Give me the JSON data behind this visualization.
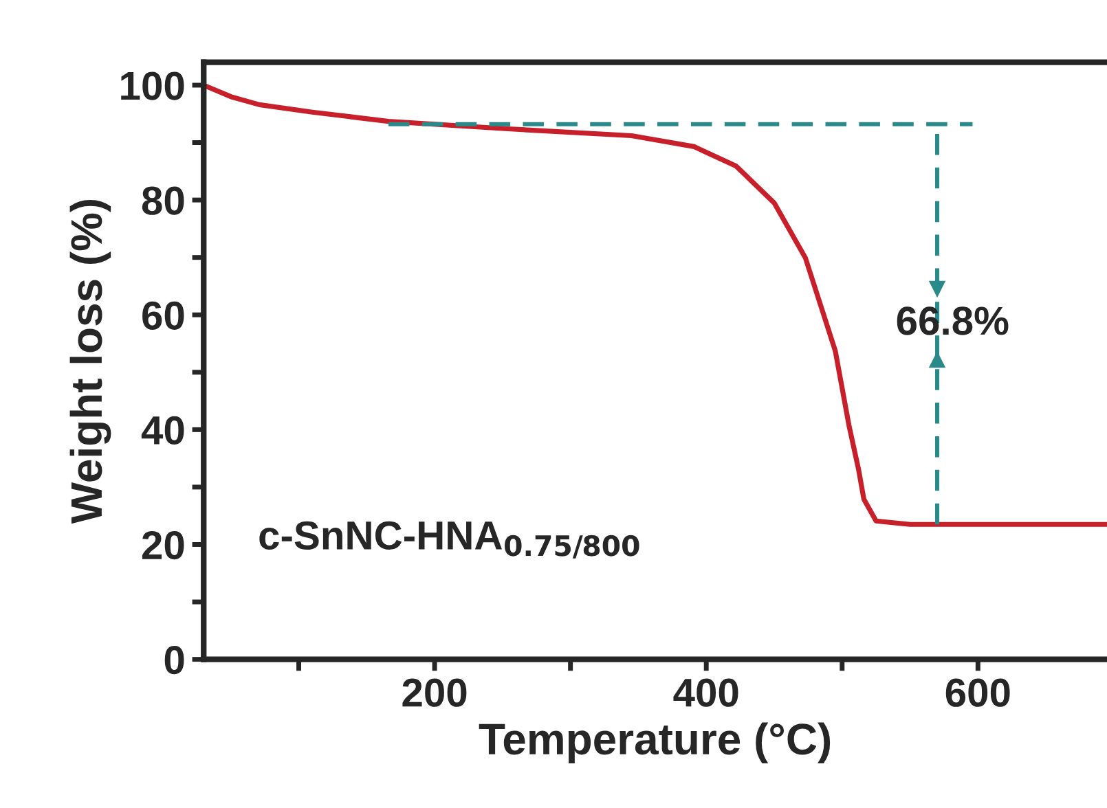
{
  "chart_data": {
    "type": "line",
    "xlabel": "Temperature (°C)",
    "ylabel": "Weight loss (%)",
    "xlim": [
      30,
      695
    ],
    "ylim": [
      0,
      104
    ],
    "xticks": [
      {
        "value": 100,
        "label": null
      },
      200,
      {
        "value": 300,
        "label": null
      },
      400,
      {
        "value": 500,
        "label": null
      },
      600
    ],
    "yticks": [
      0,
      {
        "value": 10,
        "label": null
      },
      20,
      {
        "value": 30,
        "label": null
      },
      40,
      {
        "value": 50,
        "label": null
      },
      60,
      {
        "value": 70,
        "label": null
      },
      80,
      {
        "value": 90,
        "label": null
      },
      100
    ],
    "grid": false,
    "legend": false,
    "series": [
      {
        "color": "#c8202a",
        "line_style": "solid",
        "x": [
          30,
          50,
          71,
          110,
          166,
          254,
          345,
          391,
          422,
          450,
          473,
          495,
          505,
          512,
          516,
          525,
          550,
          695
        ],
        "values": [
          100,
          98,
          96.6,
          95.3,
          93.7,
          92.4,
          91.2,
          89.3,
          85.9,
          79.5,
          69.9,
          53.7,
          40.8,
          33.2,
          27.9,
          24.1,
          23.5,
          23.5
        ]
      },
      {
        "color": "#2a8a8a",
        "line_style": "dashed",
        "x": [
          166,
          596
        ],
        "values": [
          93.2,
          93.2
        ]
      },
      {
        "color": "#2a8a8a",
        "line_style": "dashed",
        "x": [
          570,
          570
        ],
        "values": [
          23.5,
          93.2
        ]
      }
    ],
    "annotations": [
      "66.8%",
      "c-SnNC-HNA$_{0.75/800}$"
    ]
  }
}
